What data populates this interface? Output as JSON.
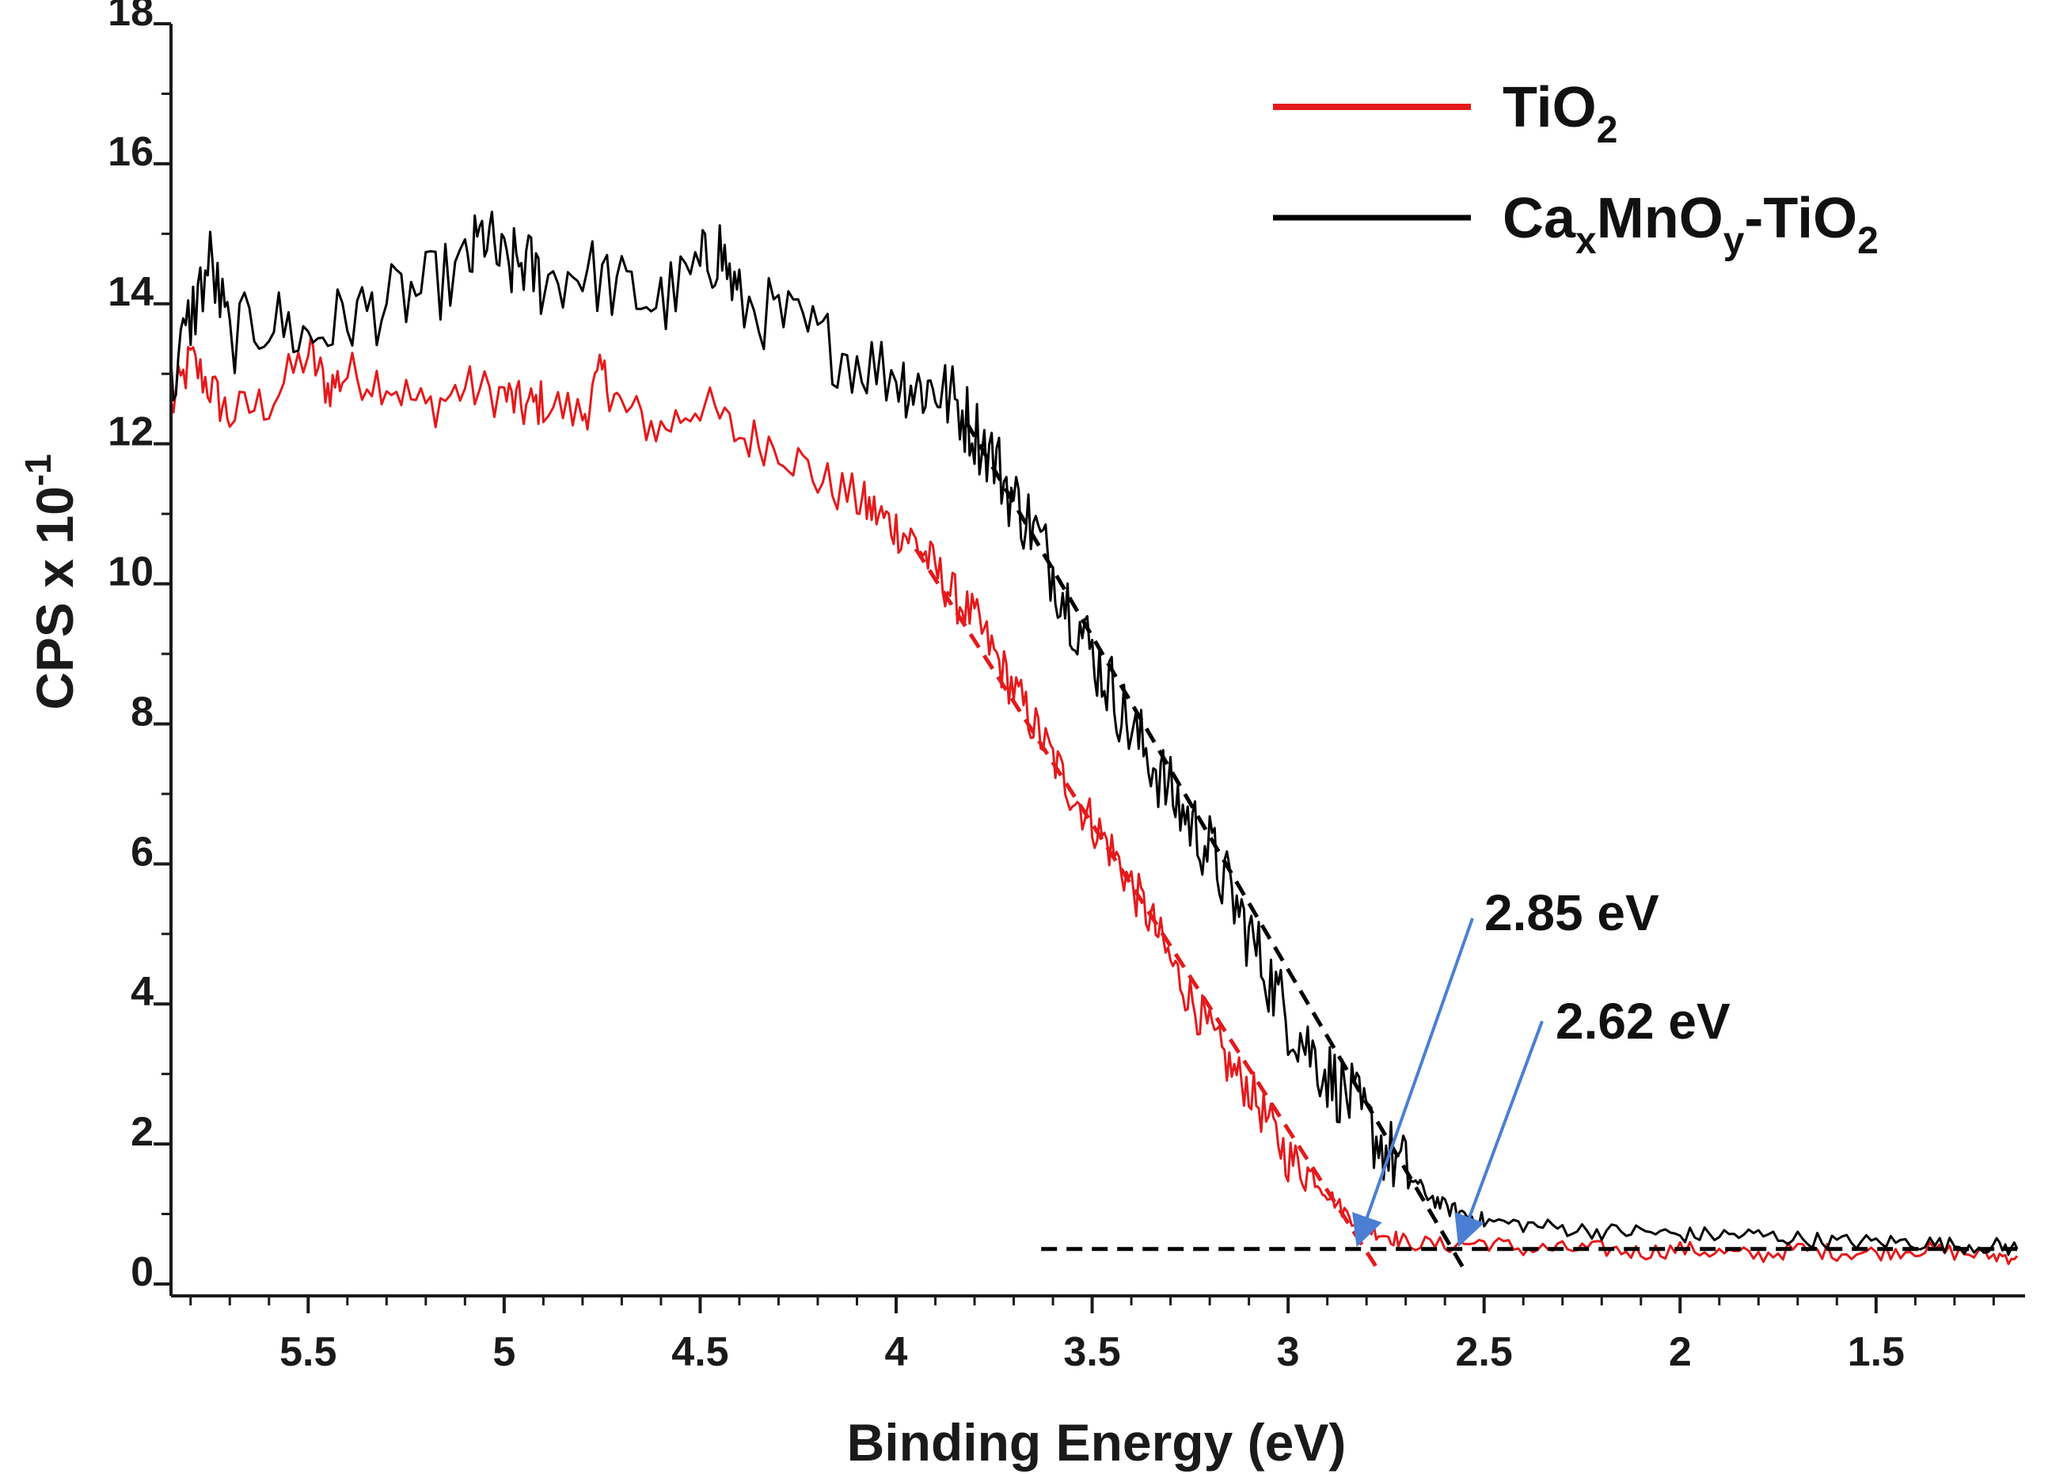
{
  "chart_data": {
    "type": "line",
    "title": "",
    "xlabel": "Binding Energy (eV)",
    "ylabel": {
      "base": "CPS x 10",
      "sup": "-1"
    },
    "xlim": [
      5.85,
      1.12
    ],
    "ylim": [
      0,
      18
    ],
    "x_reversed": true,
    "x_ticks": [
      "5.5",
      "5",
      "4.5",
      "4",
      "3.5",
      "3",
      "2.5",
      "2",
      "1.5"
    ],
    "x_tick_values": [
      5.5,
      5.0,
      4.5,
      4.0,
      3.5,
      3.0,
      2.5,
      2.0,
      1.5
    ],
    "y_ticks": [
      "0",
      "2",
      "4",
      "6",
      "8",
      "10",
      "12",
      "14",
      "16",
      "18"
    ],
    "y_tick_values": [
      0,
      2,
      4,
      6,
      8,
      10,
      12,
      14,
      16,
      18
    ],
    "grid": false,
    "legend_position": "top-right",
    "legend": [
      {
        "base": "TiO",
        "sub1": "2",
        "mid": "",
        "sub2": "",
        "tail": "",
        "color": "#e41a1c"
      },
      {
        "base": "Ca",
        "sub1": "x",
        "mid": "MnO",
        "sub2": "y",
        "tail": "-TiO",
        "sub3": "2",
        "color": "#000000"
      }
    ],
    "series": [
      {
        "name": "TiO2",
        "color": "#e41a1c",
        "x": [
          5.85,
          5.8,
          5.75,
          5.7,
          5.6,
          5.5,
          5.45,
          5.4,
          5.3,
          5.2,
          5.1,
          5.0,
          4.95,
          4.9,
          4.8,
          4.75,
          4.7,
          4.6,
          4.5,
          4.4,
          4.3,
          4.2,
          4.1,
          4.05,
          4.0,
          3.95,
          3.9,
          3.85,
          3.8,
          3.75,
          3.7,
          3.65,
          3.6,
          3.55,
          3.5,
          3.45,
          3.4,
          3.35,
          3.3,
          3.25,
          3.2,
          3.15,
          3.1,
          3.05,
          3.0,
          2.95,
          2.9,
          2.85,
          2.8,
          2.75,
          2.7,
          2.6,
          2.5,
          2.4,
          2.3,
          2.2,
          2.1,
          2.0,
          1.9,
          1.8,
          1.7,
          1.6,
          1.5,
          1.4,
          1.3,
          1.2,
          1.14
        ],
        "y": [
          12.5,
          13.2,
          12.8,
          12.4,
          12.6,
          13.3,
          12.8,
          13.0,
          12.9,
          12.5,
          12.8,
          12.7,
          12.5,
          12.6,
          12.4,
          13.0,
          12.5,
          12.2,
          12.6,
          12.1,
          12.0,
          11.5,
          11.2,
          11.0,
          10.8,
          10.6,
          10.2,
          9.8,
          9.5,
          9.0,
          8.5,
          8.0,
          7.5,
          7.0,
          6.6,
          6.2,
          5.7,
          5.2,
          4.6,
          4.1,
          3.6,
          3.1,
          2.8,
          2.3,
          1.8,
          1.6,
          1.3,
          1.0,
          0.8,
          0.7,
          0.6,
          0.55,
          0.6,
          0.5,
          0.5,
          0.5,
          0.45,
          0.5,
          0.45,
          0.4,
          0.5,
          0.45,
          0.45,
          0.5,
          0.45,
          0.4,
          0.4
        ]
      },
      {
        "name": "CaxMnOy-TiO2",
        "color": "#000000",
        "x": [
          5.85,
          5.8,
          5.75,
          5.7,
          5.6,
          5.5,
          5.4,
          5.3,
          5.2,
          5.1,
          5.05,
          5.0,
          4.95,
          4.9,
          4.8,
          4.7,
          4.6,
          4.5,
          4.45,
          4.4,
          4.3,
          4.2,
          4.1,
          4.0,
          3.95,
          3.9,
          3.85,
          3.8,
          3.75,
          3.7,
          3.65,
          3.6,
          3.55,
          3.5,
          3.45,
          3.4,
          3.35,
          3.3,
          3.25,
          3.2,
          3.15,
          3.1,
          3.05,
          3.0,
          2.95,
          2.9,
          2.85,
          2.8,
          2.75,
          2.7,
          2.65,
          2.6,
          2.55,
          2.5,
          2.4,
          2.3,
          2.2,
          2.1,
          2.0,
          1.9,
          1.8,
          1.7,
          1.6,
          1.5,
          1.4,
          1.3,
          1.2,
          1.14
        ],
        "y": [
          12.8,
          13.8,
          14.6,
          13.5,
          13.8,
          13.5,
          13.8,
          14.0,
          14.2,
          14.5,
          15.0,
          14.5,
          14.6,
          14.3,
          14.5,
          14.2,
          14.0,
          14.5,
          14.8,
          14.0,
          13.8,
          13.5,
          13.2,
          13.0,
          12.8,
          12.8,
          12.6,
          12.2,
          11.8,
          11.2,
          10.8,
          10.2,
          9.6,
          9.0,
          8.5,
          7.9,
          7.5,
          7.0,
          6.6,
          6.2,
          5.6,
          5.0,
          4.4,
          3.8,
          3.4,
          3.0,
          2.7,
          2.3,
          1.9,
          1.6,
          1.3,
          1.1,
          1.0,
          0.9,
          0.85,
          0.8,
          0.75,
          0.75,
          0.7,
          0.7,
          0.7,
          0.65,
          0.6,
          0.6,
          0.6,
          0.55,
          0.55,
          0.5
        ]
      }
    ],
    "fit_lines": [
      {
        "name": "TiO2 linear fit",
        "color": "#e41a1c",
        "style": "dashed",
        "x": [
          3.95,
          2.77
        ],
        "y": [
          10.5,
          0.2
        ]
      },
      {
        "name": "CaxMnOy-TiO2 linear fit",
        "color": "#000000",
        "style": "dashed",
        "x": [
          3.82,
          2.55
        ],
        "y": [
          12.3,
          0.2
        ]
      },
      {
        "name": "baseline",
        "color": "#000000",
        "style": "dashed",
        "x": [
          3.63,
          1.14
        ],
        "y": [
          0.5,
          0.5
        ]
      }
    ],
    "annotations": [
      {
        "text": "2.85 eV",
        "arrow_to_x": 2.82,
        "arrow_to_y": 0.5,
        "color": "#4a7fd4"
      },
      {
        "text": "2.62 eV",
        "arrow_to_x": 2.56,
        "arrow_to_y": 0.5,
        "color": "#4a7fd4"
      }
    ]
  }
}
